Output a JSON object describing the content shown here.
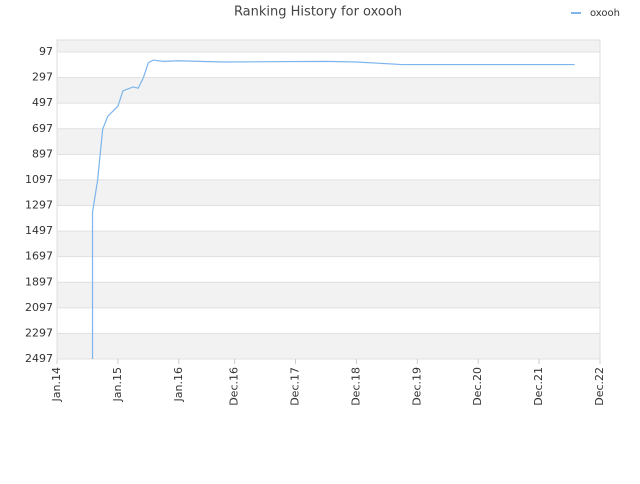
{
  "chart_data": {
    "type": "line",
    "title": "Ranking History for oxooh",
    "x": [
      "2014-08",
      "2014-08",
      "2014-09",
      "2014-10",
      "2014-11",
      "2015-01",
      "2015-02",
      "2015-04",
      "2015-05",
      "2015-06",
      "2015-07",
      "2015-08",
      "2015-10",
      "2016-01",
      "2016-05",
      "2016-10",
      "2018-06",
      "2018-12",
      "2019-09",
      "2022-07"
    ],
    "series": [
      {
        "name": "oxooh",
        "color": "#7cb5ec",
        "values": [
          2497,
          1350,
          1100,
          700,
          600,
          520,
          400,
          370,
          380,
          300,
          180,
          160,
          170,
          165,
          170,
          175,
          170,
          175,
          195,
          195
        ]
      }
    ],
    "ylim": [
      2497,
      3
    ],
    "yticks": [
      97,
      297,
      497,
      697,
      897,
      1097,
      1297,
      1497,
      1697,
      1897,
      2097,
      2297,
      2497
    ],
    "xlim": [
      "2014-01",
      "2022-12"
    ],
    "xticks": [
      {
        "value": "2014-01",
        "label": "Jan.14"
      },
      {
        "value": "2015-01",
        "label": "Jan.15"
      },
      {
        "value": "2016-01",
        "label": "Jan.16"
      },
      {
        "value": "2016-12",
        "label": "Dec.16"
      },
      {
        "value": "2017-12",
        "label": "Dec.17"
      },
      {
        "value": "2018-12",
        "label": "Dec.18"
      },
      {
        "value": "2019-12",
        "label": "Dec.19"
      },
      {
        "value": "2020-12",
        "label": "Dec.20"
      },
      {
        "value": "2021-12",
        "label": "Dec.21"
      },
      {
        "value": "2022-12",
        "label": "Dec.22"
      }
    ],
    "grid": true,
    "legend": "top-right"
  }
}
